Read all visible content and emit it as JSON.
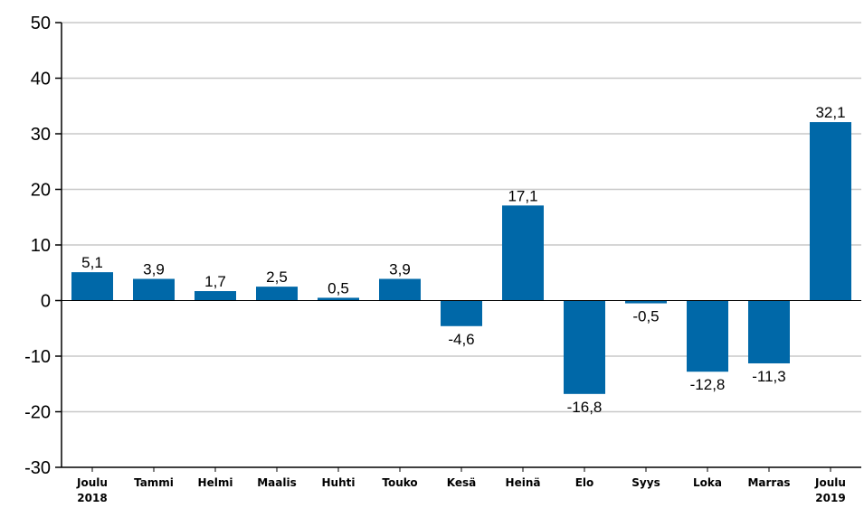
{
  "chart_data": {
    "type": "bar",
    "title": "",
    "xlabel": "",
    "ylabel": "",
    "ylim": [
      -30,
      50
    ],
    "yticks": [
      -30,
      -20,
      -10,
      0,
      10,
      20,
      30,
      40,
      50
    ],
    "ytick_labels": [
      "-30",
      "-20",
      "-10",
      "0",
      "10",
      "20",
      "30",
      "40",
      "50"
    ],
    "grid": true,
    "bar_color": "#0068a8",
    "categories": [
      [
        "Joulu",
        "2018"
      ],
      [
        "Tammi"
      ],
      [
        "Helmi"
      ],
      [
        "Maalis"
      ],
      [
        "Huhti"
      ],
      [
        "Touko"
      ],
      [
        "Kesä"
      ],
      [
        "Heinä"
      ],
      [
        "Elo"
      ],
      [
        "Syys"
      ],
      [
        "Loka"
      ],
      [
        "Marras"
      ],
      [
        "Joulu",
        "2019"
      ]
    ],
    "values": [
      5.1,
      3.9,
      1.7,
      2.5,
      0.5,
      3.9,
      -4.6,
      17.1,
      -16.8,
      -0.5,
      -12.8,
      -11.3,
      32.1
    ],
    "value_labels": [
      "5,1",
      "3,9",
      "1,7",
      "2,5",
      "0,5",
      "3,9",
      "-4,6",
      "17,1",
      "-16,8",
      "-0,5",
      "-12,8",
      "-11,3",
      "32,1"
    ]
  }
}
